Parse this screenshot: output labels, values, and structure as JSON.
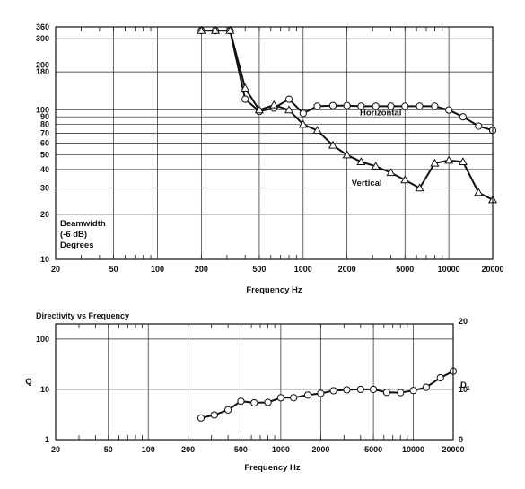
{
  "chart_data": [
    {
      "type": "line",
      "title": "",
      "xlabel": "Frequency Hz",
      "ylabel": "Beamwidth (-6 dB) Degrees",
      "ylabel_lines": [
        "Beamwidth",
        "(-6 dB)",
        "Degrees"
      ],
      "x_scale": "log",
      "y_scale": "log",
      "xlim": [
        20,
        20000
      ],
      "ylim": [
        10,
        360
      ],
      "x_ticks": [
        20,
        50,
        100,
        200,
        500,
        1000,
        2000,
        5000,
        10000,
        20000
      ],
      "x_tick_labels": [
        "20",
        "50",
        "100",
        "200",
        "500",
        "1000",
        "2000",
        "5000",
        "10000",
        "20000"
      ],
      "y_ticks": [
        10,
        20,
        30,
        40,
        50,
        60,
        70,
        80,
        90,
        100,
        180,
        200,
        300,
        360
      ],
      "y_tick_labels": [
        "10",
        "20",
        "30",
        "40",
        "50",
        "60",
        "70",
        "80",
        "90",
        "100",
        "180",
        "200",
        "300",
        "360"
      ],
      "grid": true,
      "series": [
        {
          "name": "Horizontal",
          "marker": "circle",
          "x": [
            200,
            250,
            315,
            400,
            500,
            630,
            800,
            1000,
            1250,
            1600,
            2000,
            2500,
            3150,
            4000,
            5000,
            6300,
            8000,
            10000,
            12500,
            16000,
            20000
          ],
          "y": [
            340,
            340,
            340,
            118,
            98,
            103,
            118,
            95,
            106,
            107,
            107,
            106,
            106,
            106,
            106,
            106,
            106,
            100,
            90,
            78,
            73
          ]
        },
        {
          "name": "Vertical",
          "marker": "triangle",
          "x": [
            200,
            250,
            315,
            400,
            500,
            630,
            800,
            1000,
            1250,
            1600,
            2000,
            2500,
            3150,
            4000,
            5000,
            6300,
            8000,
            10000,
            12500,
            16000,
            20000
          ],
          "y": [
            340,
            340,
            340,
            140,
            100,
            108,
            100,
            80,
            73,
            58,
            50,
            45,
            42,
            38,
            34,
            30,
            44,
            46,
            45,
            28,
            25
          ]
        }
      ]
    },
    {
      "type": "line",
      "title": "Directivity vs Frequency",
      "xlabel": "Frequency Hz",
      "ylabel": "Q",
      "ylabel_right": "D",
      "ylabel_right_sub": "1",
      "x_scale": "log",
      "y_scale": "log",
      "xlim": [
        20,
        20000
      ],
      "ylim": [
        1,
        200
      ],
      "x_ticks": [
        20,
        50,
        100,
        200,
        500,
        1000,
        2000,
        5000,
        10000,
        20000
      ],
      "x_tick_labels": [
        "20",
        "50",
        "100",
        "200",
        "500",
        "1000",
        "2000",
        "5000",
        "10000",
        "20000"
      ],
      "y_ticks": [
        1,
        10,
        100
      ],
      "y_tick_labels": [
        "1",
        "10",
        "100"
      ],
      "y_right_ticks": [
        0,
        10,
        20
      ],
      "y_right_tick_labels": [
        "0",
        "10",
        "20"
      ],
      "grid": true,
      "series": [
        {
          "name": "",
          "marker": "circle",
          "x": [
            250,
            315,
            400,
            500,
            630,
            800,
            1000,
            1250,
            1600,
            2000,
            2500,
            3150,
            4000,
            5000,
            6300,
            8000,
            10000,
            12500,
            16000,
            20000
          ],
          "y": [
            2.7,
            3.1,
            3.9,
            5.8,
            5.4,
            5.5,
            6.8,
            6.8,
            7.7,
            8.3,
            9.4,
            9.8,
            10,
            10,
            8.7,
            8.6,
            9.5,
            11,
            17,
            23
          ]
        }
      ]
    }
  ]
}
